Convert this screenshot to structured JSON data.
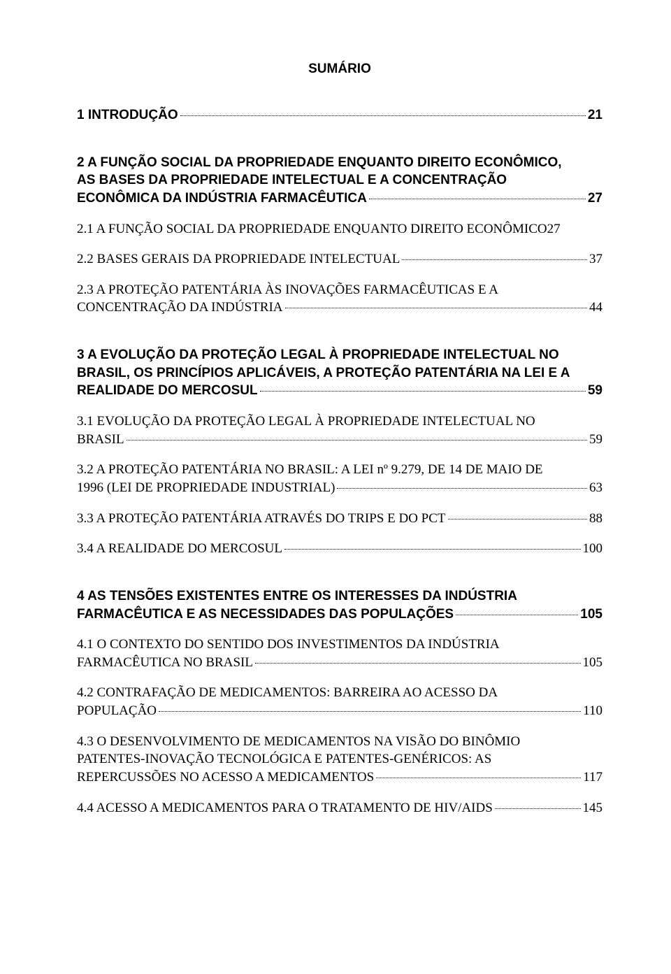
{
  "title": "SUMÁRIO",
  "chapters": [
    {
      "heading": {
        "text": "1 INTRODUÇÃO",
        "page": "21",
        "bold": true
      }
    },
    {
      "heading_multi": {
        "lines": [
          "2 A FUNÇÃO SOCIAL DA PROPRIEDADE ENQUANTO DIREITO ECONÔMICO,",
          "AS BASES DA PROPRIEDADE INTELECTUAL E A CONCENTRAÇÃO"
        ],
        "last": "ECONÔMICA DA INDÚSTRIA FARMACÊUTICA",
        "page": "27",
        "bold": true
      },
      "subs": [
        {
          "text": "2.1 A FUNÇÃO SOCIAL DA PROPRIEDADE ENQUANTO DIREITO ECONÔMICO",
          "page": "27"
        },
        {
          "text": "2.2 BASES GERAIS DA PROPRIEDADE INTELECTUAL",
          "page": "37"
        },
        {
          "lines": [
            "2.3 A PROTEÇÃO PATENTÁRIA ÀS INOVAÇÕES FARMACÊUTICAS E A"
          ],
          "last": "CONCENTRAÇÃO DA INDÚSTRIA",
          "page": "44"
        }
      ]
    },
    {
      "heading_multi": {
        "lines": [
          "3 A EVOLUÇÃO DA PROTEÇÃO LEGAL À PROPRIEDADE INTELECTUAL NO",
          "BRASIL, OS PRINCÍPIOS APLICÁVEIS, A PROTEÇÃO PATENTÁRIA NA LEI E A"
        ],
        "last": "REALIDADE DO MERCOSUL",
        "page": "59",
        "bold": true
      },
      "subs": [
        {
          "lines": [
            "3.1 EVOLUÇÃO DA PROTEÇÃO LEGAL À PROPRIEDADE INTELECTUAL NO"
          ],
          "last": "BRASIL",
          "page": "59"
        },
        {
          "lines": [
            "3.2 A PROTEÇÃO PATENTÁRIA NO BRASIL: A LEI nº 9.279, DE 14 DE MAIO DE"
          ],
          "last": "1996 (LEI DE PROPRIEDADE INDUSTRIAL)",
          "page": "63"
        },
        {
          "text": "3.3 A PROTEÇÃO PATENTÁRIA ATRAVÉS DO TRIPS E DO PCT",
          "page": "88"
        },
        {
          "text": "3.4 A REALIDADE DO MERCOSUL",
          "page": "100"
        }
      ]
    },
    {
      "heading_multi": {
        "lines": [
          "4 AS TENSÕES EXISTENTES ENTRE OS INTERESSES DA INDÚSTRIA"
        ],
        "last": "FARMACÊUTICA E AS NECESSIDADES DAS POPULAÇÕES",
        "page": "105",
        "bold": true
      },
      "subs": [
        {
          "lines": [
            "4.1 O CONTEXTO DO SENTIDO DOS INVESTIMENTOS DA INDÚSTRIA"
          ],
          "last": "FARMACÊUTICA NO BRASIL",
          "page": "105"
        },
        {
          "lines": [
            "4.2 CONTRAFAÇÃO DE MEDICAMENTOS: BARREIRA AO ACESSO DA"
          ],
          "last": "POPULAÇÃO",
          "page": "110"
        },
        {
          "lines": [
            "4.3 O DESENVOLVIMENTO DE MEDICAMENTOS NA VISÃO DO BINÔMIO",
            "PATENTES-INOVAÇÃO TECNOLÓGICA E PATENTES-GENÉRICOS: AS"
          ],
          "last": "REPERCUSSÕES NO ACESSO A MEDICAMENTOS",
          "page": "117"
        },
        {
          "text": "4.4 ACESSO A MEDICAMENTOS PARA O TRATAMENTO DE HIV/AIDS",
          "page": "145"
        }
      ]
    }
  ]
}
